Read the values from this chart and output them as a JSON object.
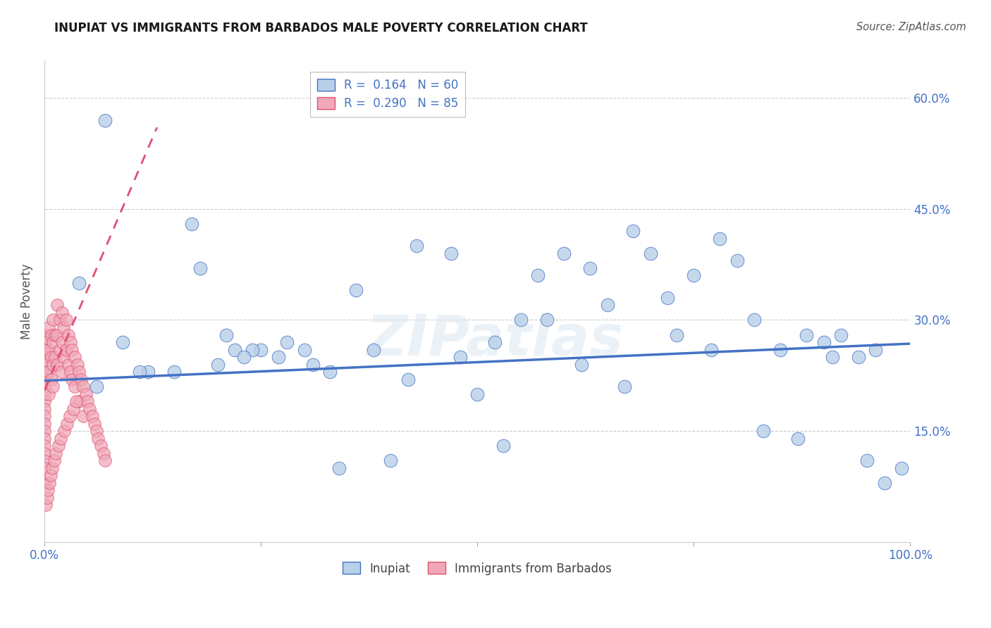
{
  "title": "INUPIAT VS IMMIGRANTS FROM BARBADOS MALE POVERTY CORRELATION CHART",
  "source": "Source: ZipAtlas.com",
  "ylabel": "Male Poverty",
  "watermark": "ZIPatlas",
  "legend1_label": "R =  0.164   N = 60",
  "legend2_label": "R =  0.290   N = 85",
  "legend_bottom1": "Inupiat",
  "legend_bottom2": "Immigrants from Barbados",
  "xlim": [
    0,
    1.0
  ],
  "ylim": [
    0,
    0.65
  ],
  "color_blue": "#b8d0e8",
  "color_pink": "#f0a8b8",
  "color_blue_line": "#4472c4",
  "color_pink_line": "#e05070",
  "title_color": "#1a1a1a",
  "inupiat_x": [
    0.04,
    0.07,
    0.17,
    0.18,
    0.21,
    0.22,
    0.25,
    0.28,
    0.3,
    0.31,
    0.34,
    0.38,
    0.4,
    0.43,
    0.47,
    0.5,
    0.52,
    0.55,
    0.57,
    0.6,
    0.63,
    0.65,
    0.68,
    0.7,
    0.72,
    0.75,
    0.78,
    0.8,
    0.82,
    0.85,
    0.88,
    0.9,
    0.92,
    0.94,
    0.96,
    0.09,
    0.12,
    0.15,
    0.2,
    0.24,
    0.27,
    0.33,
    0.36,
    0.42,
    0.48,
    0.53,
    0.58,
    0.62,
    0.67,
    0.73,
    0.77,
    0.83,
    0.87,
    0.91,
    0.95,
    0.97,
    0.99,
    0.06,
    0.11,
    0.23
  ],
  "inupiat_y": [
    0.35,
    0.57,
    0.43,
    0.37,
    0.28,
    0.26,
    0.26,
    0.27,
    0.26,
    0.24,
    0.1,
    0.26,
    0.11,
    0.4,
    0.39,
    0.2,
    0.27,
    0.3,
    0.36,
    0.39,
    0.37,
    0.32,
    0.42,
    0.39,
    0.33,
    0.36,
    0.41,
    0.38,
    0.3,
    0.26,
    0.28,
    0.27,
    0.28,
    0.25,
    0.26,
    0.27,
    0.23,
    0.23,
    0.24,
    0.26,
    0.25,
    0.23,
    0.34,
    0.22,
    0.25,
    0.13,
    0.3,
    0.24,
    0.21,
    0.28,
    0.26,
    0.15,
    0.14,
    0.25,
    0.11,
    0.08,
    0.1,
    0.21,
    0.23,
    0.25
  ],
  "barbados_x": [
    0.0,
    0.0,
    0.0,
    0.0,
    0.0,
    0.0,
    0.0,
    0.0,
    0.0,
    0.0,
    0.0,
    0.0,
    0.0,
    0.0,
    0.0,
    0.0,
    0.0,
    0.0,
    0.0,
    0.0,
    0.0,
    0.005,
    0.005,
    0.005,
    0.005,
    0.008,
    0.008,
    0.008,
    0.01,
    0.01,
    0.01,
    0.01,
    0.012,
    0.012,
    0.015,
    0.015,
    0.015,
    0.018,
    0.018,
    0.02,
    0.02,
    0.02,
    0.022,
    0.022,
    0.025,
    0.025,
    0.028,
    0.028,
    0.03,
    0.03,
    0.032,
    0.032,
    0.035,
    0.035,
    0.038,
    0.04,
    0.04,
    0.042,
    0.045,
    0.045,
    0.048,
    0.05,
    0.052,
    0.055,
    0.058,
    0.06,
    0.062,
    0.065,
    0.068,
    0.07,
    0.002,
    0.003,
    0.004,
    0.006,
    0.007,
    0.009,
    0.011,
    0.013,
    0.016,
    0.019,
    0.023,
    0.026,
    0.029,
    0.033,
    0.037
  ],
  "barbados_y": [
    0.28,
    0.27,
    0.27,
    0.26,
    0.25,
    0.24,
    0.23,
    0.22,
    0.21,
    0.2,
    0.19,
    0.18,
    0.17,
    0.16,
    0.15,
    0.14,
    0.13,
    0.12,
    0.11,
    0.1,
    0.08,
    0.29,
    0.26,
    0.23,
    0.2,
    0.28,
    0.25,
    0.22,
    0.3,
    0.27,
    0.24,
    0.21,
    0.28,
    0.25,
    0.32,
    0.28,
    0.24,
    0.3,
    0.26,
    0.31,
    0.27,
    0.23,
    0.29,
    0.25,
    0.3,
    0.26,
    0.28,
    0.24,
    0.27,
    0.23,
    0.26,
    0.22,
    0.25,
    0.21,
    0.24,
    0.23,
    0.19,
    0.22,
    0.21,
    0.17,
    0.2,
    0.19,
    0.18,
    0.17,
    0.16,
    0.15,
    0.14,
    0.13,
    0.12,
    0.11,
    0.05,
    0.06,
    0.07,
    0.08,
    0.09,
    0.1,
    0.11,
    0.12,
    0.13,
    0.14,
    0.15,
    0.16,
    0.17,
    0.18,
    0.19
  ],
  "blue_line_x": [
    0.0,
    1.0
  ],
  "blue_line_y": [
    0.218,
    0.268
  ],
  "pink_line_x": [
    0.0,
    0.13
  ],
  "pink_line_y": [
    0.205,
    0.56
  ]
}
